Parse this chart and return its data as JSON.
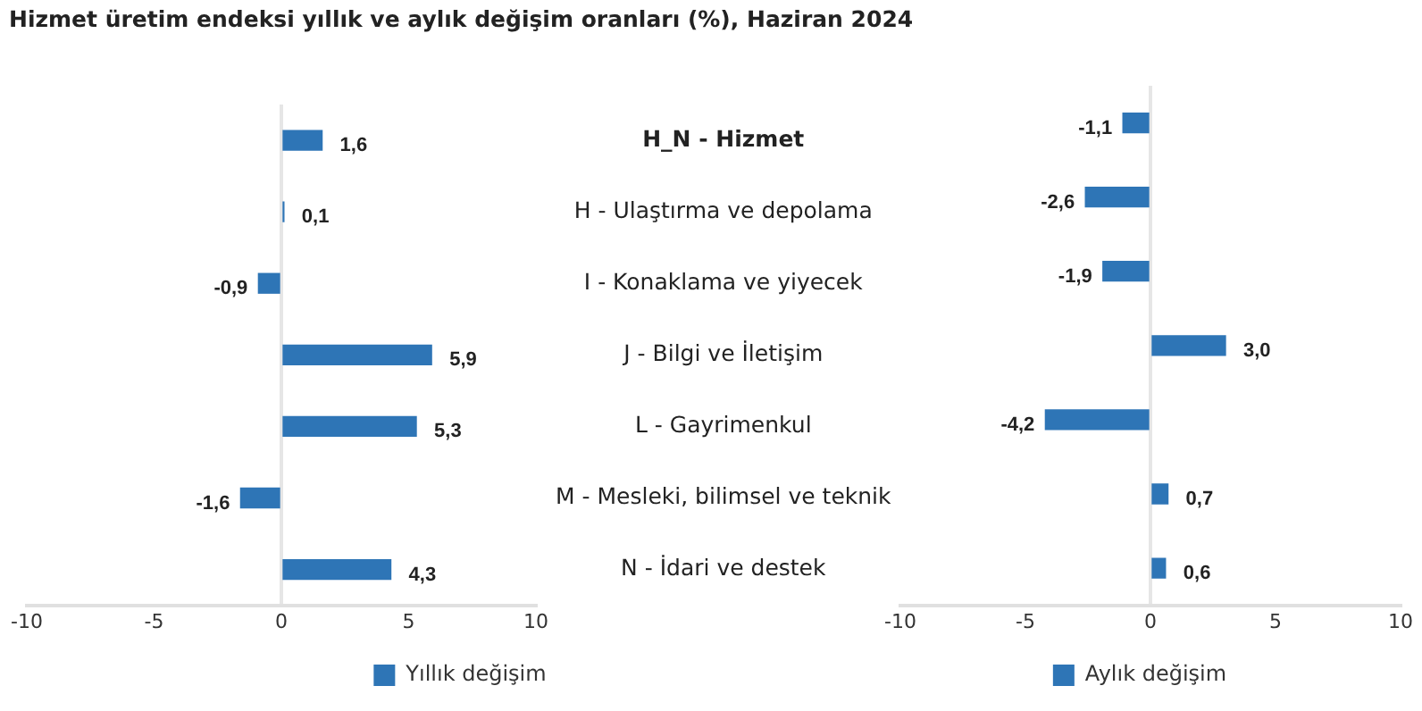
{
  "chart_data": [
    {
      "type": "bar",
      "orientation": "horizontal",
      "title": "Hizmet üretim endeksi yıllık ve aylık değişim oranları (%), Haziran 2024",
      "categories": [
        "H_N - Hizmet",
        "H - Ulaştırma ve depolama",
        "I - Konaklama ve yiyecek",
        "J - Bilgi ve İletişim",
        "L - Gayrimenkul",
        "M - Mesleki, bilimsel ve teknik",
        "N - İdari ve destek"
      ],
      "series": [
        {
          "name": "Yıllık değişim",
          "color": "#2e75b6",
          "values": [
            1.6,
            0.1,
            -0.9,
            5.9,
            5.3,
            -1.6,
            4.3
          ],
          "value_labels": [
            "1,6",
            "0,1",
            "-0,9",
            "5,9",
            "5,3",
            "-1,6",
            "4,3"
          ]
        }
      ],
      "xlim": [
        -10,
        10
      ],
      "xticks": [
        -10,
        -5,
        0,
        5,
        10
      ],
      "legend": "bottom"
    },
    {
      "type": "bar",
      "orientation": "horizontal",
      "categories": [
        "H_N - Hizmet",
        "H - Ulaştırma ve depolama",
        "I - Konaklama ve yiyecek",
        "J - Bilgi ve İletişim",
        "L - Gayrimenkul",
        "M - Mesleki, bilimsel ve teknik",
        "N - İdari ve destek"
      ],
      "series": [
        {
          "name": "Aylık değişim",
          "color": "#2e75b6",
          "values": [
            -1.1,
            -2.6,
            -1.9,
            3.0,
            -4.2,
            0.7,
            0.6
          ],
          "value_labels": [
            "-1,1",
            "-2,6",
            "-1,9",
            "3,0",
            "-4,2",
            "0,7",
            "0,6"
          ]
        }
      ],
      "xlim": [
        -10,
        10
      ],
      "xticks": [
        -10,
        -5,
        0,
        5,
        10
      ],
      "legend": "bottom",
      "tick_labels": "x"
    }
  ]
}
